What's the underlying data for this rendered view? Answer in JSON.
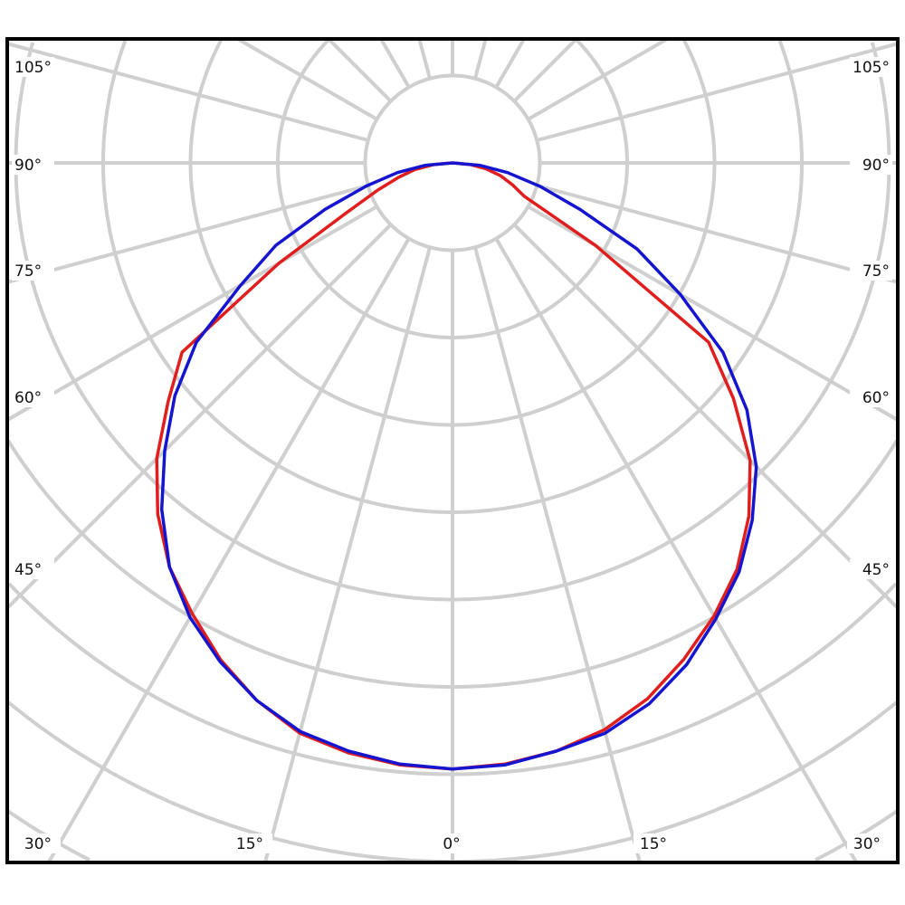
{
  "chart_data": {
    "type": "polar-line",
    "title": "",
    "angle_unit": "degrees",
    "radial_unit": "grid rings (no scale printed)",
    "grid": true,
    "angular_grid_step": 15,
    "ring_count": 12,
    "angle_labels_left": [
      "105°",
      "90°",
      "75°",
      "60°",
      "45°",
      "30°"
    ],
    "angle_labels_bottom": [
      "30°",
      "15°",
      "0°",
      "15°",
      "30°"
    ],
    "angle_labels_right": [
      "105°",
      "90°",
      "75°",
      "60°",
      "45°",
      "30°"
    ],
    "angles": [
      -90,
      -85,
      -80,
      -75,
      -70,
      -65,
      -60,
      -55,
      -50,
      -45,
      -40,
      -35,
      -30,
      -25,
      -20,
      -15,
      -10,
      -5,
      0,
      5,
      10,
      15,
      20,
      25,
      30,
      35,
      40,
      45,
      50,
      55,
      60,
      65,
      70,
      75,
      80,
      85,
      90
    ],
    "series": [
      {
        "color": "#e01e1e",
        "values": [
          0,
          0.22,
          0.44,
          0.64,
          0.91,
          1.32,
          2.29,
          3.78,
          4.25,
          4.79,
          5.25,
          5.65,
          5.96,
          6.28,
          6.55,
          6.76,
          6.86,
          6.92,
          6.94,
          6.91,
          6.84,
          6.72,
          6.53,
          6.27,
          5.99,
          5.68,
          5.28,
          4.82,
          4.2,
          3.58,
          1.89,
          0.91,
          0.73,
          0.57,
          0.39,
          0.2,
          0
        ]
      },
      {
        "color": "#1515d0",
        "values": [
          0,
          0.31,
          0.64,
          1.02,
          1.55,
          2.23,
          2.8,
          3.58,
          4.15,
          4.66,
          5.18,
          5.65,
          6.01,
          6.3,
          6.55,
          6.74,
          6.84,
          6.91,
          6.94,
          6.92,
          6.84,
          6.76,
          6.59,
          6.34,
          6.03,
          5.72,
          5.34,
          4.92,
          4.4,
          3.78,
          3.01,
          2.33,
          1.55,
          1.04,
          0.64,
          0.31,
          0
        ]
      }
    ],
    "colors": {
      "grid": "#cfcfcf",
      "frame": "#000000"
    }
  }
}
